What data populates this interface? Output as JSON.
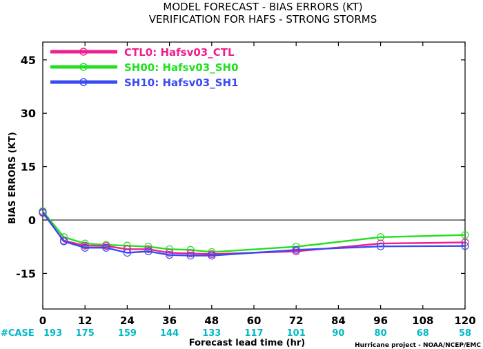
{
  "chart_data": {
    "type": "line",
    "title": "MODEL FORECAST - BIAS ERRORS (KT)",
    "subtitle": "VERIFICATION FOR HAFS - STRONG STORMS",
    "xlabel": "Forecast lead time (hr)",
    "ylabel": "BIAS ERRORS (KT)",
    "xlim": [
      0,
      120
    ],
    "ylim": [
      -25,
      50
    ],
    "xticks": [
      0,
      12,
      24,
      36,
      48,
      60,
      72,
      84,
      96,
      108,
      120
    ],
    "yticks": [
      -15,
      0,
      15,
      30,
      45
    ],
    "zero_line": true,
    "legend_position": "top-left",
    "case_label": "#CASE",
    "case_counts": [
      {
        "x": 0,
        "n": "193"
      },
      {
        "x": 12,
        "n": "175"
      },
      {
        "x": 24,
        "n": "159"
      },
      {
        "x": 36,
        "n": "144"
      },
      {
        "x": 48,
        "n": "133"
      },
      {
        "x": 60,
        "n": "117"
      },
      {
        "x": 72,
        "n": "101"
      },
      {
        "x": 84,
        "n": "90"
      },
      {
        "x": 96,
        "n": "80"
      },
      {
        "x": 108,
        "n": "68"
      },
      {
        "x": 120,
        "n": "58"
      }
    ],
    "series": [
      {
        "name": "CTL0:  Hafsv03_CTL",
        "color": "#ee1f8f",
        "x": [
          0,
          6,
          12,
          18,
          24,
          30,
          36,
          42,
          48,
          72,
          96,
          120
        ],
        "y": [
          2,
          -5.8,
          -7.2,
          -7.3,
          -8.2,
          -8.2,
          -9.2,
          -9.4,
          -9.6,
          -8.8,
          -6.6,
          -6.3
        ]
      },
      {
        "name": "SH00:  Hafsv03_SH0",
        "color": "#20e020",
        "x": [
          0,
          6,
          12,
          18,
          24,
          30,
          36,
          42,
          48,
          72,
          96,
          120
        ],
        "y": [
          2.5,
          -4.8,
          -6.6,
          -7.0,
          -7.2,
          -7.5,
          -8.2,
          -8.4,
          -9.0,
          -7.5,
          -4.8,
          -4.2
        ]
      },
      {
        "name": "SH10:  Hafsv03_SH1",
        "color": "#3a4af0",
        "x": [
          0,
          6,
          12,
          18,
          24,
          30,
          36,
          42,
          48,
          72,
          96,
          120
        ],
        "y": [
          2.2,
          -6.0,
          -7.8,
          -7.8,
          -9.2,
          -8.8,
          -9.8,
          -10.0,
          -10.0,
          -8.4,
          -7.4,
          -7.3
        ]
      }
    ],
    "credit": "Hurricane project - NOAA/NCEP/EMC"
  }
}
